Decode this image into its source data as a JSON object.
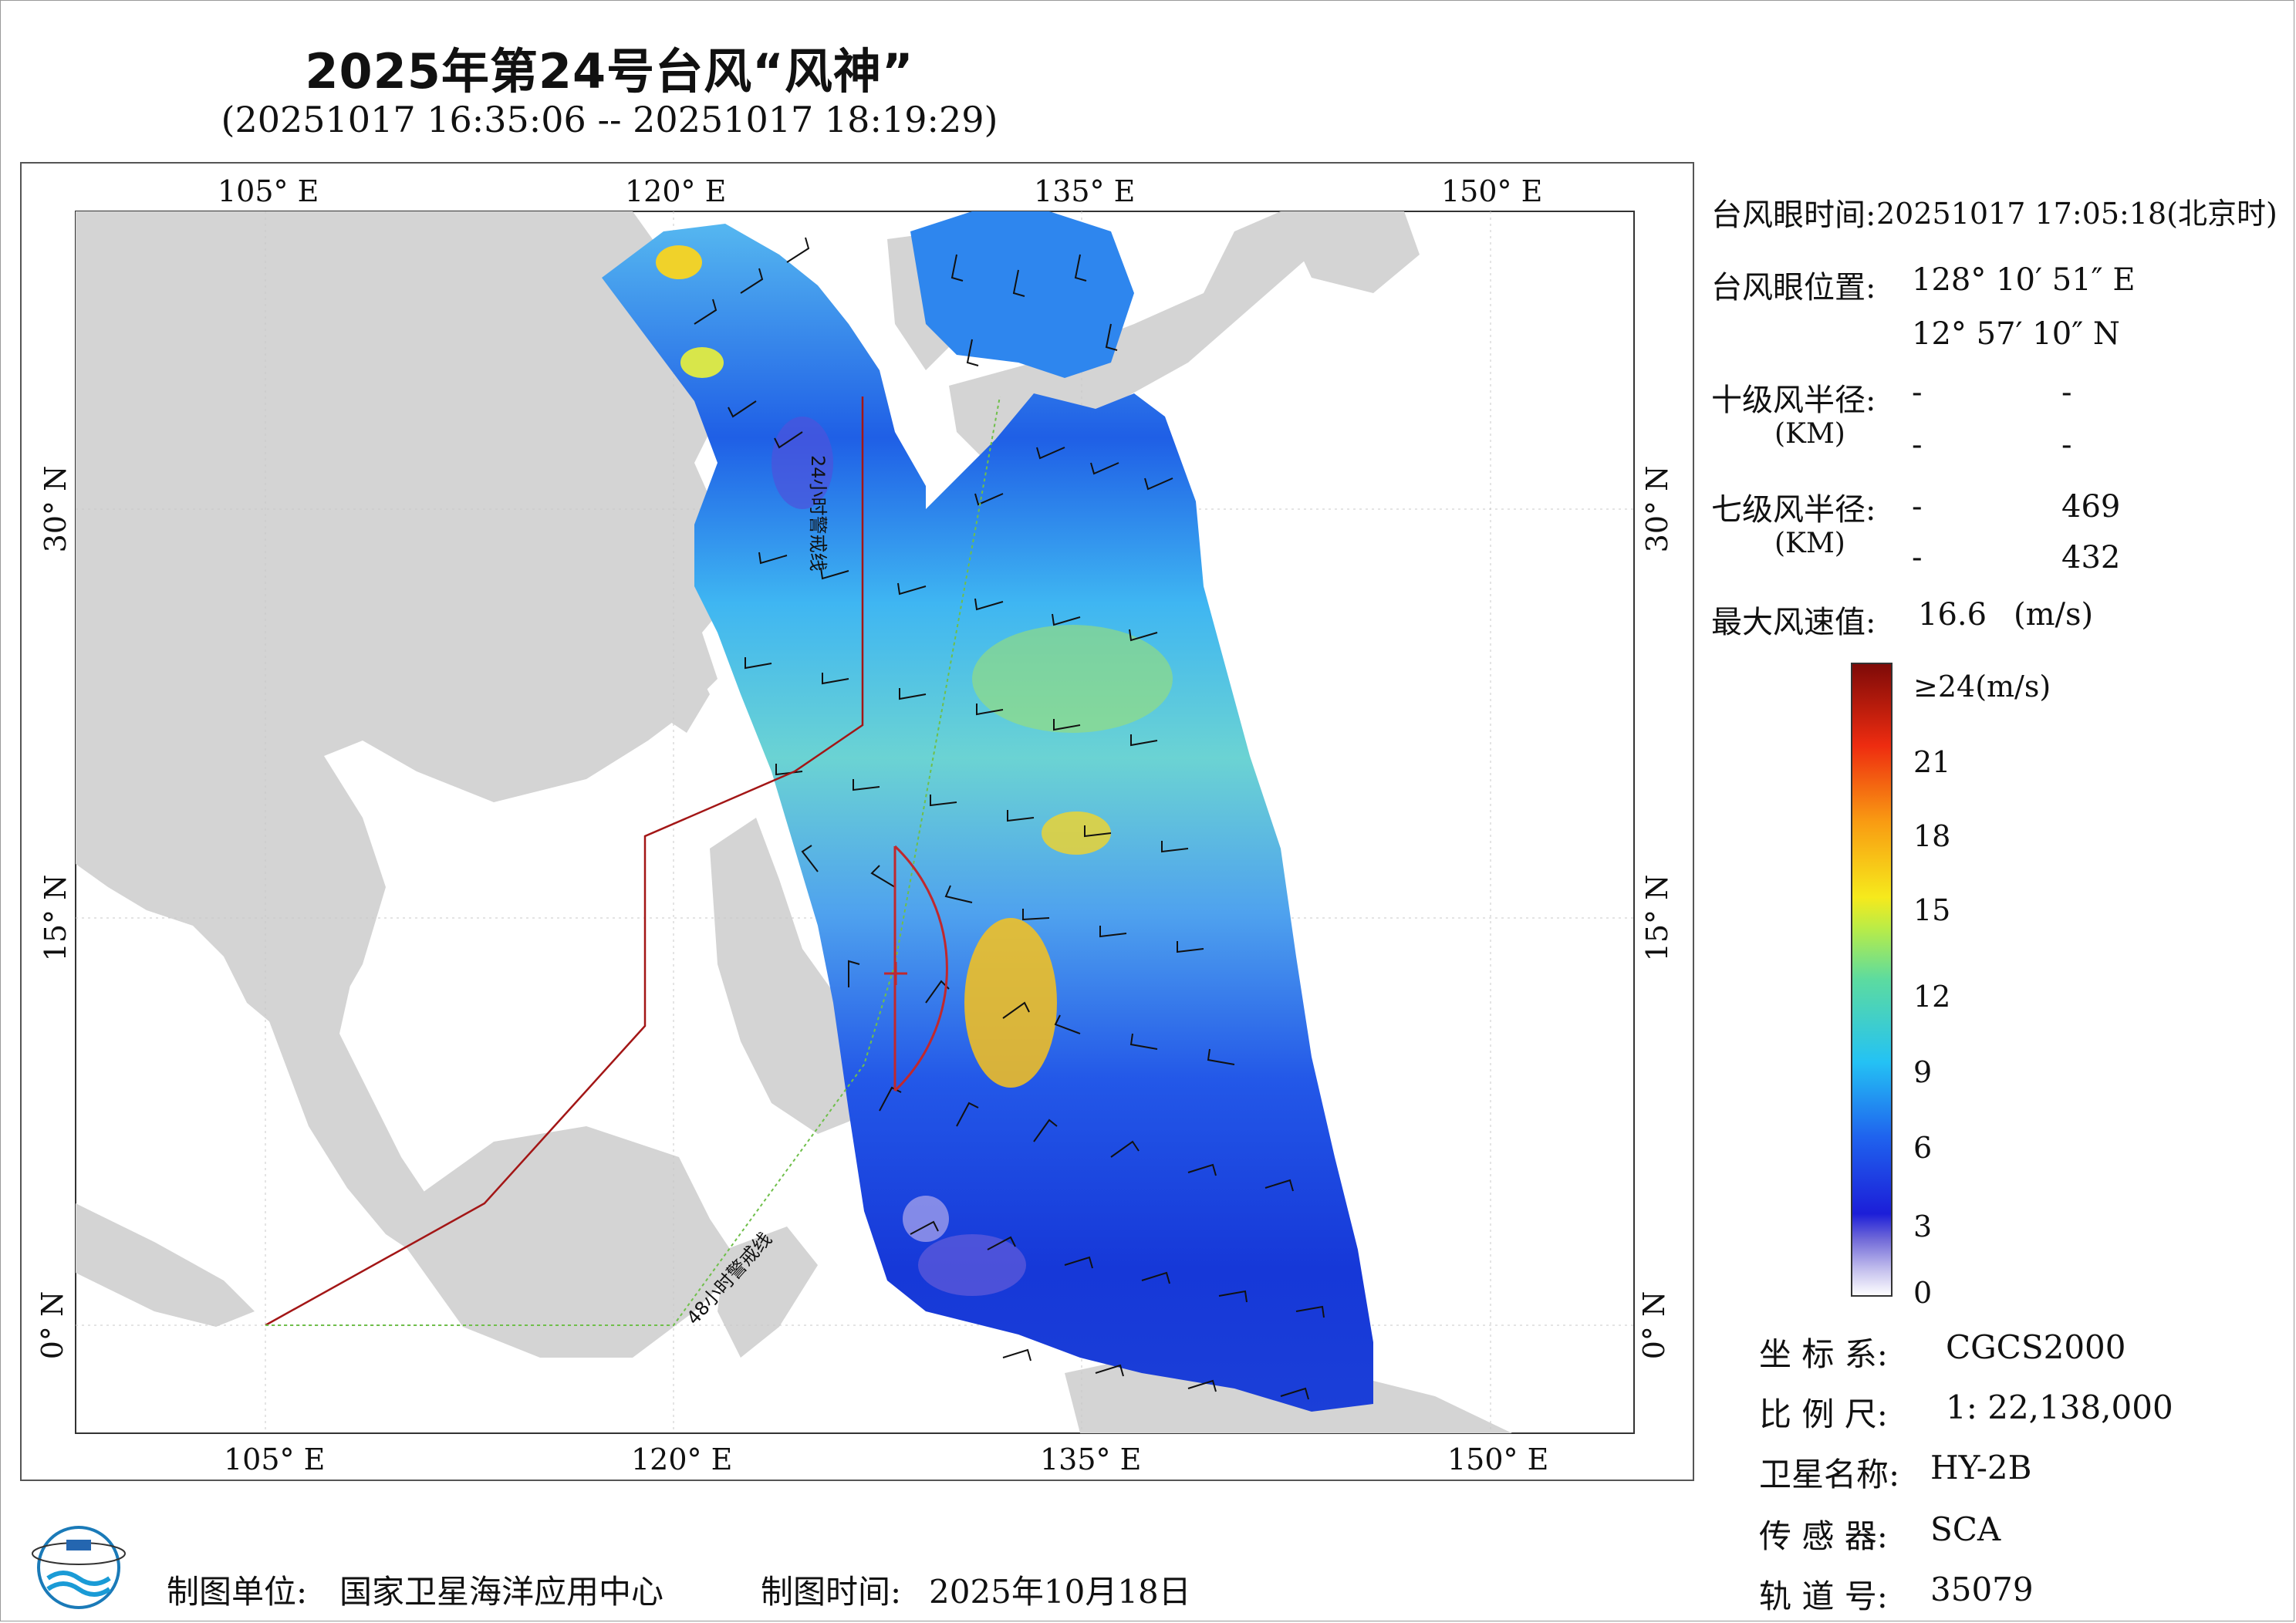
{
  "header": {
    "title": "2025年第24号台风“风神”",
    "subtitle": "(20251017 16:35:06 -- 20251017 18:19:29)"
  },
  "map": {
    "lon_labels": [
      "105° E",
      "120° E",
      "135° E",
      "150° E"
    ],
    "lat_labels": [
      "30° N",
      "15° N",
      "0° N"
    ],
    "warning_24h": "24小时警戒线",
    "warning_48h": "48小时警戒线",
    "colors": {
      "land": "#d4d4d4",
      "sea": "#ffffff",
      "warn24": "#a31616",
      "warn48": "#6fbf4a",
      "typhoon_circle": "#c0282d"
    }
  },
  "info": {
    "eye_time_label": "台风眼时间:",
    "eye_time_value": "20251017 17:05:18(北京时)",
    "eye_pos_label": "台风眼位置:",
    "eye_lon": "128° 10′ 51″ E",
    "eye_lat": "12° 57′ 10″ N",
    "r10_label": "十级风半径:",
    "r10_unit": "(KM)",
    "r10_values": [
      "-",
      "-",
      "-",
      "-"
    ],
    "r7_label": "七级风半径:",
    "r7_unit": "(KM)",
    "r7_values": [
      "-",
      "469",
      "-",
      "432"
    ],
    "max_wind_label": "最大风速值:",
    "max_wind_value": "16.6",
    "max_wind_unit": "(m/s)"
  },
  "colorbar": {
    "ticks": [
      "≥24(m/s)",
      "21",
      "18",
      "15",
      "12",
      "9",
      "6",
      "3",
      "0"
    ]
  },
  "meta": {
    "crs_label": "坐 标 系:",
    "crs_value": "CGCS2000",
    "scale_label": "比 例 尺:",
    "scale_value": "1: 22,138,000",
    "satellite_label": "卫星名称:",
    "satellite_value": "HY-2B",
    "sensor_label": "传 感 器:",
    "sensor_value": "SCA",
    "orbit_label": "轨 道 号:",
    "orbit_value": "35079"
  },
  "footer": {
    "org_label": "制图单位:",
    "org_value": "国家卫星海洋应用中心",
    "date_label": "制图时间:",
    "date_value": "2025年10月18日"
  }
}
